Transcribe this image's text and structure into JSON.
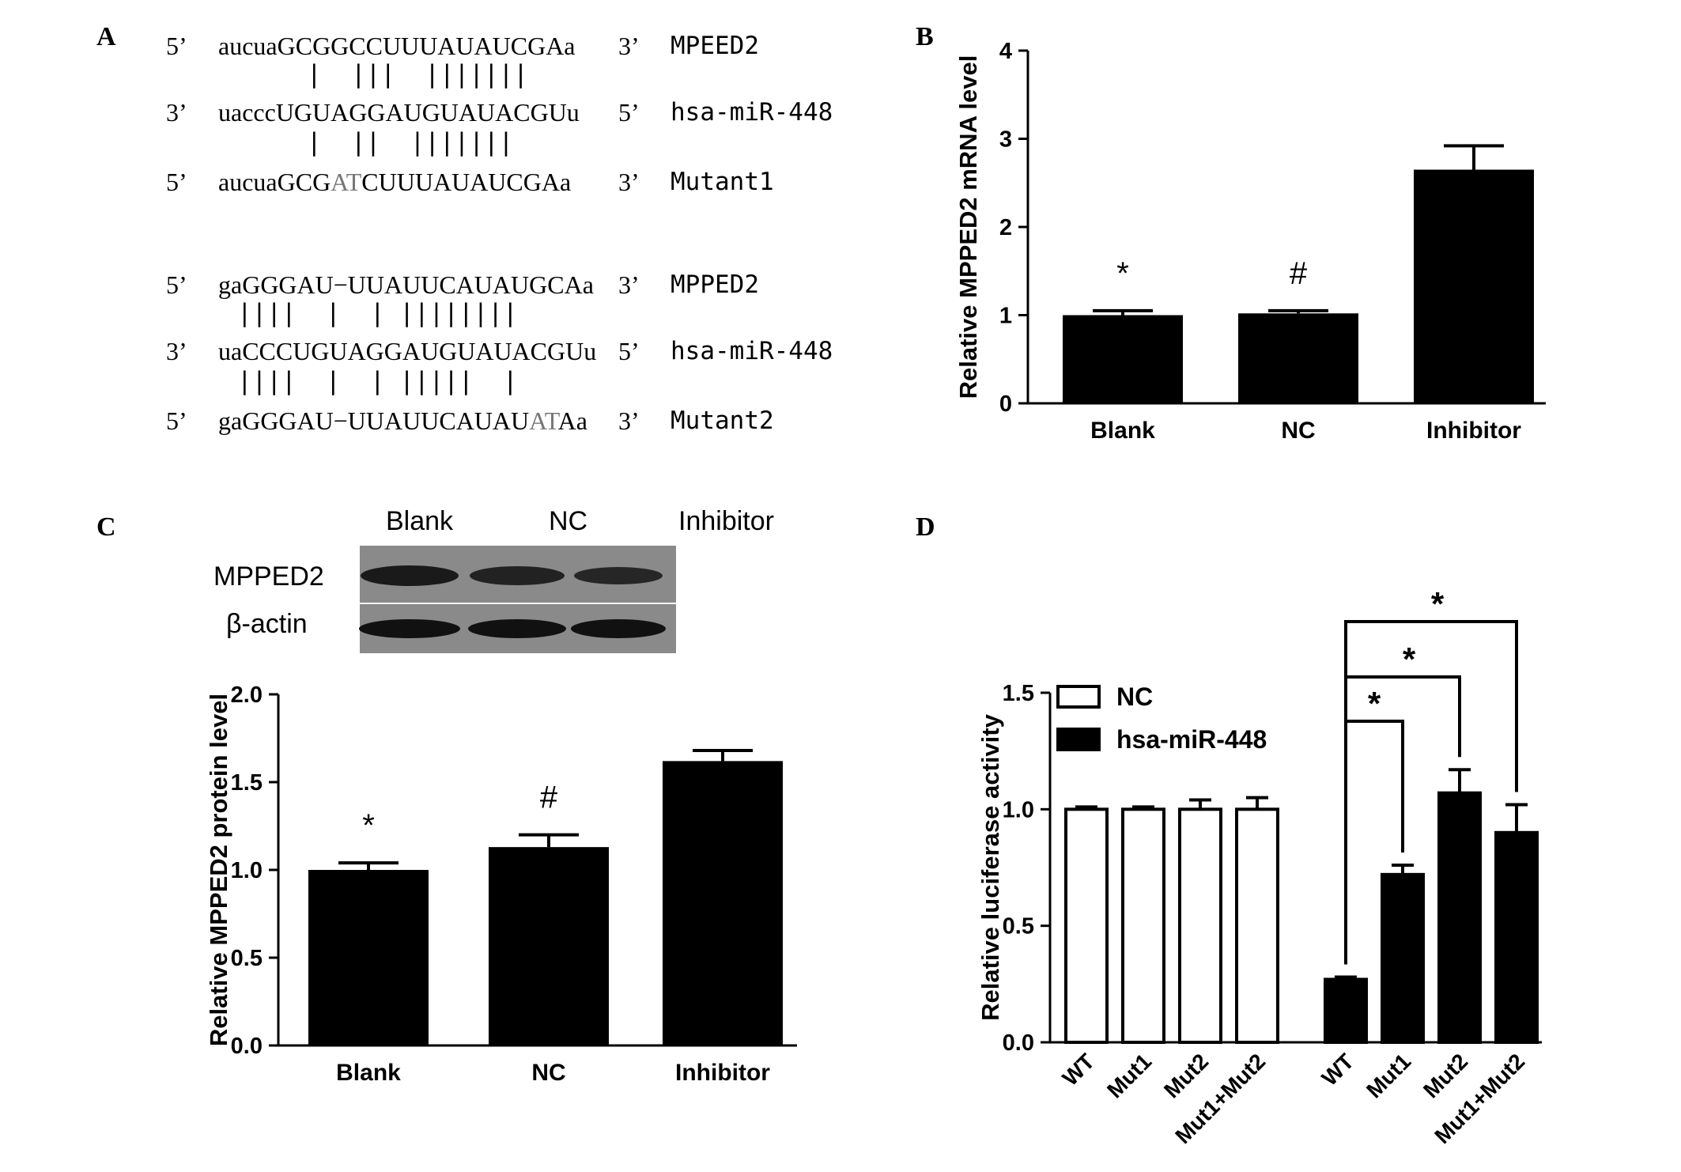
{
  "panels": {
    "a": "A",
    "b": "B",
    "c": "C",
    "d": "D"
  },
  "panel_a": {
    "group1": [
      {
        "left": "5’",
        "seq": "aucuaGCGGCCUUUAUAUCGAa",
        "right": "3’",
        "name": "MPEED2"
      },
      {
        "pairs": "|  |||  |||||||"
      },
      {
        "left": "3’",
        "seq": "uacccUGUAGGAUGUAUACGUu",
        "right": "5’",
        "name": "hsa-miR-448"
      },
      {
        "pairs": "|  ||  |||||||"
      },
      {
        "left": "5’",
        "seq_pre": "aucuaGCG",
        "seq_mut": "AT",
        "seq_post": "CUUUAUAUCGAa",
        "right": "3’",
        "name": "Mutant1"
      }
    ],
    "group2": [
      {
        "left": "5’",
        "seq": "gaGGGAU−UUAUUCAUAUGCAa",
        "right": "3’",
        "name": "MPPED2"
      },
      {
        "pairs": "||||  |  | ||||||||"
      },
      {
        "left": "3’",
        "seq": "uaCCCUGUAGGAUGUAUACGUu",
        "right": "5’",
        "name": "hsa-miR-448"
      },
      {
        "pairs": "||||  |  | |||||  |"
      },
      {
        "left": "5’",
        "seq_pre": "gaGGGAU−UUAUUCAUAU",
        "seq_mut": "AT",
        "seq_post": "Aa",
        "right": "3’",
        "name": "Mutant2"
      }
    ]
  },
  "blot": {
    "lane_labels": [
      "Blank",
      "NC",
      "Inhibitor"
    ],
    "row_labels": [
      "MPPED2",
      "β-actin"
    ]
  },
  "chart_data": [
    {
      "id": "B",
      "type": "bar",
      "ylabel": "Relative MPPED2 mRNA level",
      "categories": [
        "Blank",
        "NC",
        "Inhibitor"
      ],
      "values": [
        1.0,
        1.02,
        2.65
      ],
      "errors": [
        0.05,
        0.03,
        0.27
      ],
      "annotations": [
        "*",
        "#",
        ""
      ],
      "ylim": [
        0,
        4
      ],
      "yticks": [
        "0",
        "1",
        "2",
        "3",
        "4"
      ]
    },
    {
      "id": "C",
      "type": "bar",
      "ylabel": "Relative MPPED2 protein level",
      "categories": [
        "Blank",
        "NC",
        "Inhibitor"
      ],
      "values": [
        1.0,
        1.13,
        1.62
      ],
      "errors": [
        0.04,
        0.07,
        0.06
      ],
      "annotations": [
        "*",
        "#",
        ""
      ],
      "ylim": [
        0,
        2.0
      ],
      "yticks": [
        "0.0",
        "0.5",
        "1.0",
        "1.5",
        "2.0"
      ]
    },
    {
      "id": "D",
      "type": "bar",
      "ylabel": "Relative luciferase activity",
      "legend": [
        "NC",
        "hsa-miR-448"
      ],
      "legend_position": "top-left",
      "series": [
        {
          "name": "NC",
          "categories": [
            "WT",
            "Mut1",
            "Mut2",
            "Mut1+Mut2"
          ],
          "values": [
            1.0,
            1.0,
            1.0,
            1.0
          ],
          "errors": [
            0.01,
            0.01,
            0.04,
            0.05
          ],
          "fill": "#ffffff"
        },
        {
          "name": "hsa-miR-448",
          "categories": [
            "WT",
            "Mut1",
            "Mut2",
            "Mut1+Mut2"
          ],
          "values": [
            0.27,
            0.72,
            1.07,
            0.9
          ],
          "errors": [
            0.01,
            0.04,
            0.1,
            0.12
          ],
          "fill": "#000000"
        }
      ],
      "significance": [
        "*",
        "*",
        "*"
      ],
      "ylim": [
        0,
        1.5
      ],
      "yticks": [
        "0.0",
        "0.5",
        "1.0",
        "1.5"
      ]
    }
  ]
}
